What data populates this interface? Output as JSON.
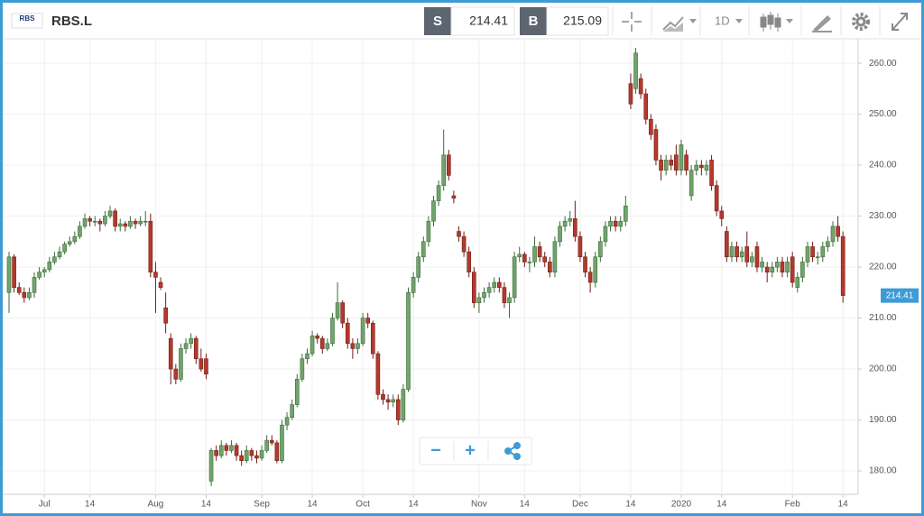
{
  "toolbar": {
    "logo": "RBS",
    "symbol": "RBS.L",
    "sell_label": "S",
    "sell_price": "214.41",
    "buy_label": "B",
    "buy_price": "215.09",
    "timeframe": "1D"
  },
  "zoom_controls": {
    "zoom_out": "−",
    "zoom_in": "+"
  },
  "chart_data": {
    "type": "candlestick",
    "colors": {
      "up": "#6fa56b",
      "down": "#b5392c",
      "up_edge": "#3d6b3a",
      "down_edge": "#6e1d15"
    },
    "current_price": 214.41,
    "grid": true,
    "xlim": [
      -1.25,
      168
    ],
    "ylim": [
      175.4,
      264.8
    ],
    "yticks": [
      {
        "value": 180,
        "label": "180.00"
      },
      {
        "value": 190,
        "label": "190.00"
      },
      {
        "value": 200,
        "label": "200.00"
      },
      {
        "value": 210,
        "label": "210.00"
      },
      {
        "value": 220,
        "label": "220.00"
      },
      {
        "value": 230,
        "label": "230.00"
      },
      {
        "value": 240,
        "label": "240.00"
      },
      {
        "value": 250,
        "label": "250.00"
      },
      {
        "value": 260,
        "label": "260.00"
      }
    ],
    "xticks": [
      {
        "value": 7,
        "label": "Jul"
      },
      {
        "value": 16,
        "label": "14"
      },
      {
        "value": 29,
        "label": "Aug"
      },
      {
        "value": 39,
        "label": "14"
      },
      {
        "value": 50,
        "label": "Sep"
      },
      {
        "value": 60,
        "label": "14"
      },
      {
        "value": 70,
        "label": "Oct"
      },
      {
        "value": 80,
        "label": "14"
      },
      {
        "value": 93,
        "label": "Nov"
      },
      {
        "value": 102,
        "label": "14"
      },
      {
        "value": 113,
        "label": "Dec"
      },
      {
        "value": 123,
        "label": "14"
      },
      {
        "value": 133,
        "label": "2020"
      },
      {
        "value": 141,
        "label": "14"
      },
      {
        "value": 155,
        "label": "Feb"
      },
      {
        "value": 165,
        "label": "14"
      }
    ],
    "ohlc": [
      [
        215,
        223,
        211,
        222
      ],
      [
        222,
        222.5,
        215,
        216
      ],
      [
        216,
        217,
        214.5,
        215
      ],
      [
        215,
        216,
        213,
        214
      ],
      [
        214,
        216,
        213.5,
        215
      ],
      [
        215,
        219,
        214,
        218
      ],
      [
        218,
        220,
        217.5,
        219
      ],
      [
        219,
        220,
        218,
        219.5
      ],
      [
        219.5,
        222,
        219,
        221
      ],
      [
        221,
        223,
        220.5,
        222
      ],
      [
        222,
        224,
        221.5,
        223
      ],
      [
        223,
        225,
        222.5,
        224.5
      ],
      [
        224.5,
        226,
        224,
        225
      ],
      [
        225,
        227,
        224.5,
        226
      ],
      [
        226,
        229,
        225.5,
        228
      ],
      [
        228,
        230.5,
        227.5,
        229.5
      ],
      [
        229.5,
        230,
        228,
        229
      ],
      [
        229,
        230,
        228,
        229
      ],
      [
        229,
        229.5,
        227,
        228.5
      ],
      [
        228.5,
        231,
        228,
        230
      ],
      [
        230,
        232,
        229.5,
        231
      ],
      [
        231,
        231.5,
        227,
        228
      ],
      [
        228,
        229.5,
        227,
        228.5
      ],
      [
        228.5,
        229,
        227,
        228
      ],
      [
        228,
        230,
        227.5,
        229
      ],
      [
        229,
        229.5,
        227.5,
        228.5
      ],
      [
        228.5,
        230,
        228,
        229
      ],
      [
        229,
        231,
        228,
        229
      ],
      [
        229,
        230.5,
        218,
        219
      ],
      [
        219,
        221,
        211,
        218
      ],
      [
        217,
        218,
        215.5,
        216
      ],
      [
        212,
        215,
        207,
        209
      ],
      [
        206,
        207,
        197,
        200
      ],
      [
        200,
        201,
        197,
        198
      ],
      [
        198,
        205,
        197.5,
        204
      ],
      [
        204,
        206,
        203,
        205
      ],
      [
        205,
        207,
        204,
        206
      ],
      [
        206,
        206.5,
        201,
        202
      ],
      [
        202,
        204,
        199.5,
        200
      ],
      [
        202,
        203,
        198,
        199
      ],
      [
        178,
        184.5,
        177,
        184
      ],
      [
        184,
        185,
        182,
        183
      ],
      [
        183,
        186,
        182.5,
        185
      ],
      [
        185,
        185.5,
        183,
        184
      ],
      [
        184,
        186,
        183.5,
        185
      ],
      [
        185,
        185.5,
        182,
        183
      ],
      [
        183,
        184,
        181,
        182
      ],
      [
        182,
        185,
        181.5,
        184
      ],
      [
        184,
        184.5,
        182,
        183
      ],
      [
        183,
        184,
        181.5,
        182.5
      ],
      [
        182.5,
        185,
        182,
        184
      ],
      [
        184,
        187,
        183.5,
        186
      ],
      [
        186,
        187,
        185,
        185.5
      ],
      [
        185.5,
        186,
        181.5,
        182
      ],
      [
        182,
        190,
        181.5,
        189
      ],
      [
        189,
        191.5,
        188,
        190.5
      ],
      [
        190.5,
        194,
        190,
        193
      ],
      [
        193,
        199,
        192.5,
        198
      ],
      [
        198,
        203,
        197.5,
        202
      ],
      [
        202,
        204,
        201,
        203
      ],
      [
        203,
        207.5,
        202.5,
        206.5
      ],
      [
        206.5,
        207,
        205,
        206
      ],
      [
        206,
        206.5,
        203,
        204
      ],
      [
        204,
        206,
        203.5,
        205
      ],
      [
        205,
        211,
        204.5,
        210
      ],
      [
        210,
        217,
        209.5,
        213
      ],
      [
        213,
        213.5,
        208,
        209
      ],
      [
        209,
        210,
        204,
        205
      ],
      [
        205,
        206,
        202,
        204
      ],
      [
        204,
        206,
        203,
        205
      ],
      [
        205,
        211,
        204.5,
        210
      ],
      [
        210,
        211,
        208,
        209
      ],
      [
        209,
        209.5,
        202,
        203
      ],
      [
        203,
        203.5,
        194,
        195
      ],
      [
        195,
        196,
        193,
        194
      ],
      [
        194,
        195,
        192,
        193.5
      ],
      [
        193.5,
        195,
        192.5,
        194
      ],
      [
        194,
        195,
        189,
        190
      ],
      [
        190,
        197,
        189.5,
        196
      ],
      [
        196,
        216,
        195.5,
        215
      ],
      [
        215,
        219,
        214,
        218
      ],
      [
        218,
        223,
        217,
        222
      ],
      [
        222,
        226,
        221,
        225
      ],
      [
        225,
        230,
        224,
        229
      ],
      [
        229,
        234,
        228,
        233
      ],
      [
        233,
        237,
        232,
        236
      ],
      [
        236,
        247,
        235,
        242
      ],
      [
        242,
        243,
        237,
        238
      ],
      [
        234,
        235,
        232.5,
        233.5
      ],
      [
        227,
        228,
        225,
        226
      ],
      [
        226,
        227,
        222,
        223
      ],
      [
        223,
        224,
        218,
        219
      ],
      [
        219,
        220,
        212,
        213
      ],
      [
        213,
        215,
        211,
        214
      ],
      [
        214,
        216,
        213,
        215
      ],
      [
        215,
        217,
        214,
        216
      ],
      [
        216,
        218,
        215,
        217
      ],
      [
        217,
        218,
        215,
        216
      ],
      [
        216,
        217,
        212,
        213
      ],
      [
        213,
        215,
        210,
        214
      ],
      [
        214,
        223,
        213,
        222
      ],
      [
        222,
        224,
        221,
        222.5
      ],
      [
        222.5,
        223,
        220,
        221
      ],
      [
        221,
        222,
        219,
        221
      ],
      [
        221,
        226,
        220,
        224
      ],
      [
        224,
        225,
        221,
        222
      ],
      [
        222,
        223,
        220,
        221
      ],
      [
        221,
        222,
        218,
        219
      ],
      [
        219,
        226,
        218,
        225
      ],
      [
        225,
        229,
        224,
        228
      ],
      [
        228,
        230,
        227,
        229
      ],
      [
        229,
        231,
        228,
        229.5
      ],
      [
        229.5,
        233,
        225,
        226
      ],
      [
        226,
        227,
        221,
        222
      ],
      [
        222,
        223,
        218,
        219
      ],
      [
        219,
        220,
        215,
        217
      ],
      [
        217,
        223,
        216,
        222
      ],
      [
        222,
        226,
        221,
        225
      ],
      [
        225,
        229,
        224,
        228
      ],
      [
        228,
        230,
        227,
        229
      ],
      [
        229,
        230,
        227,
        228
      ],
      [
        228,
        230,
        227,
        229
      ],
      [
        229,
        234,
        228,
        232
      ],
      [
        256,
        258,
        251,
        252
      ],
      [
        255,
        263,
        254,
        262
      ],
      [
        257,
        258,
        253,
        254
      ],
      [
        254,
        255,
        248,
        249
      ],
      [
        249,
        250,
        245,
        246
      ],
      [
        247,
        248,
        240,
        241
      ],
      [
        241,
        242,
        237,
        239
      ],
      [
        239,
        242,
        238,
        241
      ],
      [
        241,
        242,
        239,
        240
      ],
      [
        242,
        244,
        238,
        239
      ],
      [
        239,
        245,
        238,
        244
      ],
      [
        242,
        243,
        238,
        239
      ],
      [
        234,
        240,
        233,
        239
      ],
      [
        239,
        241,
        238,
        240
      ],
      [
        240,
        241,
        238,
        239.5
      ],
      [
        239,
        241,
        238,
        240
      ],
      [
        241,
        242,
        235,
        236
      ],
      [
        236,
        237,
        230,
        231
      ],
      [
        231,
        232,
        228,
        229.5
      ],
      [
        227,
        228,
        221,
        222
      ],
      [
        222,
        225,
        221,
        224
      ],
      [
        224,
        225,
        221,
        222
      ],
      [
        222,
        224,
        221,
        223
      ],
      [
        224,
        227,
        220,
        221
      ],
      [
        221,
        223,
        220,
        222
      ],
      [
        224,
        225,
        219,
        220
      ],
      [
        220,
        222,
        219,
        221
      ],
      [
        220,
        221,
        217,
        219
      ],
      [
        219,
        221,
        218,
        220
      ],
      [
        220,
        222,
        219,
        221
      ],
      [
        221,
        222,
        218,
        219
      ],
      [
        219,
        222,
        218,
        221
      ],
      [
        222,
        223,
        216,
        217
      ],
      [
        216,
        219,
        215,
        218
      ],
      [
        218,
        222,
        217,
        221
      ],
      [
        221,
        225,
        220,
        224
      ],
      [
        224,
        225,
        221,
        222
      ],
      [
        222,
        223,
        220.5,
        222
      ],
      [
        222,
        225,
        221,
        224
      ],
      [
        224,
        226,
        223,
        225
      ],
      [
        225,
        229,
        224,
        228
      ],
      [
        228,
        230,
        225,
        226
      ],
      [
        226,
        227,
        213,
        214.41
      ]
    ]
  }
}
